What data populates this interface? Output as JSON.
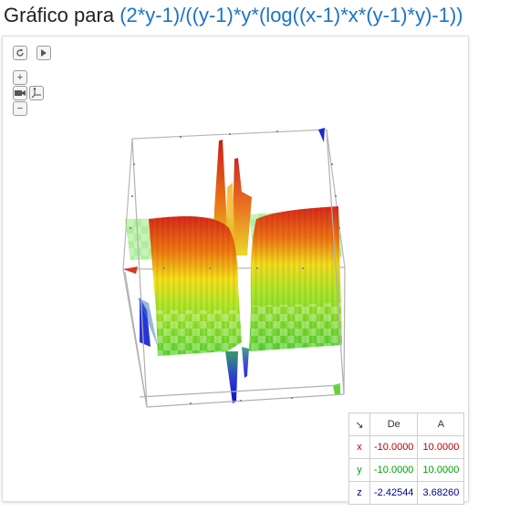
{
  "title": {
    "prefix": "Gráfico para",
    "formula": "(2*y-1)/((y-1)*y*(log((x-1)*x*(y-1)*y)-1))"
  },
  "controls": {
    "reset_icon": "rotate-icon",
    "play_icon": "play-icon",
    "zoom_in_label": "+",
    "zoom_out_label": "−",
    "camera_icon": "camera-icon",
    "axes_icon": "axes-icon"
  },
  "range_table": {
    "corner_label": "↘",
    "header_from": "De",
    "header_to": "A",
    "rows": [
      {
        "var": "x",
        "from": "-10.0000",
        "to": "10.0000",
        "color": "#c00000"
      },
      {
        "var": "y",
        "from": "-10.0000",
        "to": "10.0000",
        "color": "#00a000"
      },
      {
        "var": "z",
        "from": "-2.42544",
        "to": "3.68260",
        "color": "#000090"
      }
    ]
  }
}
